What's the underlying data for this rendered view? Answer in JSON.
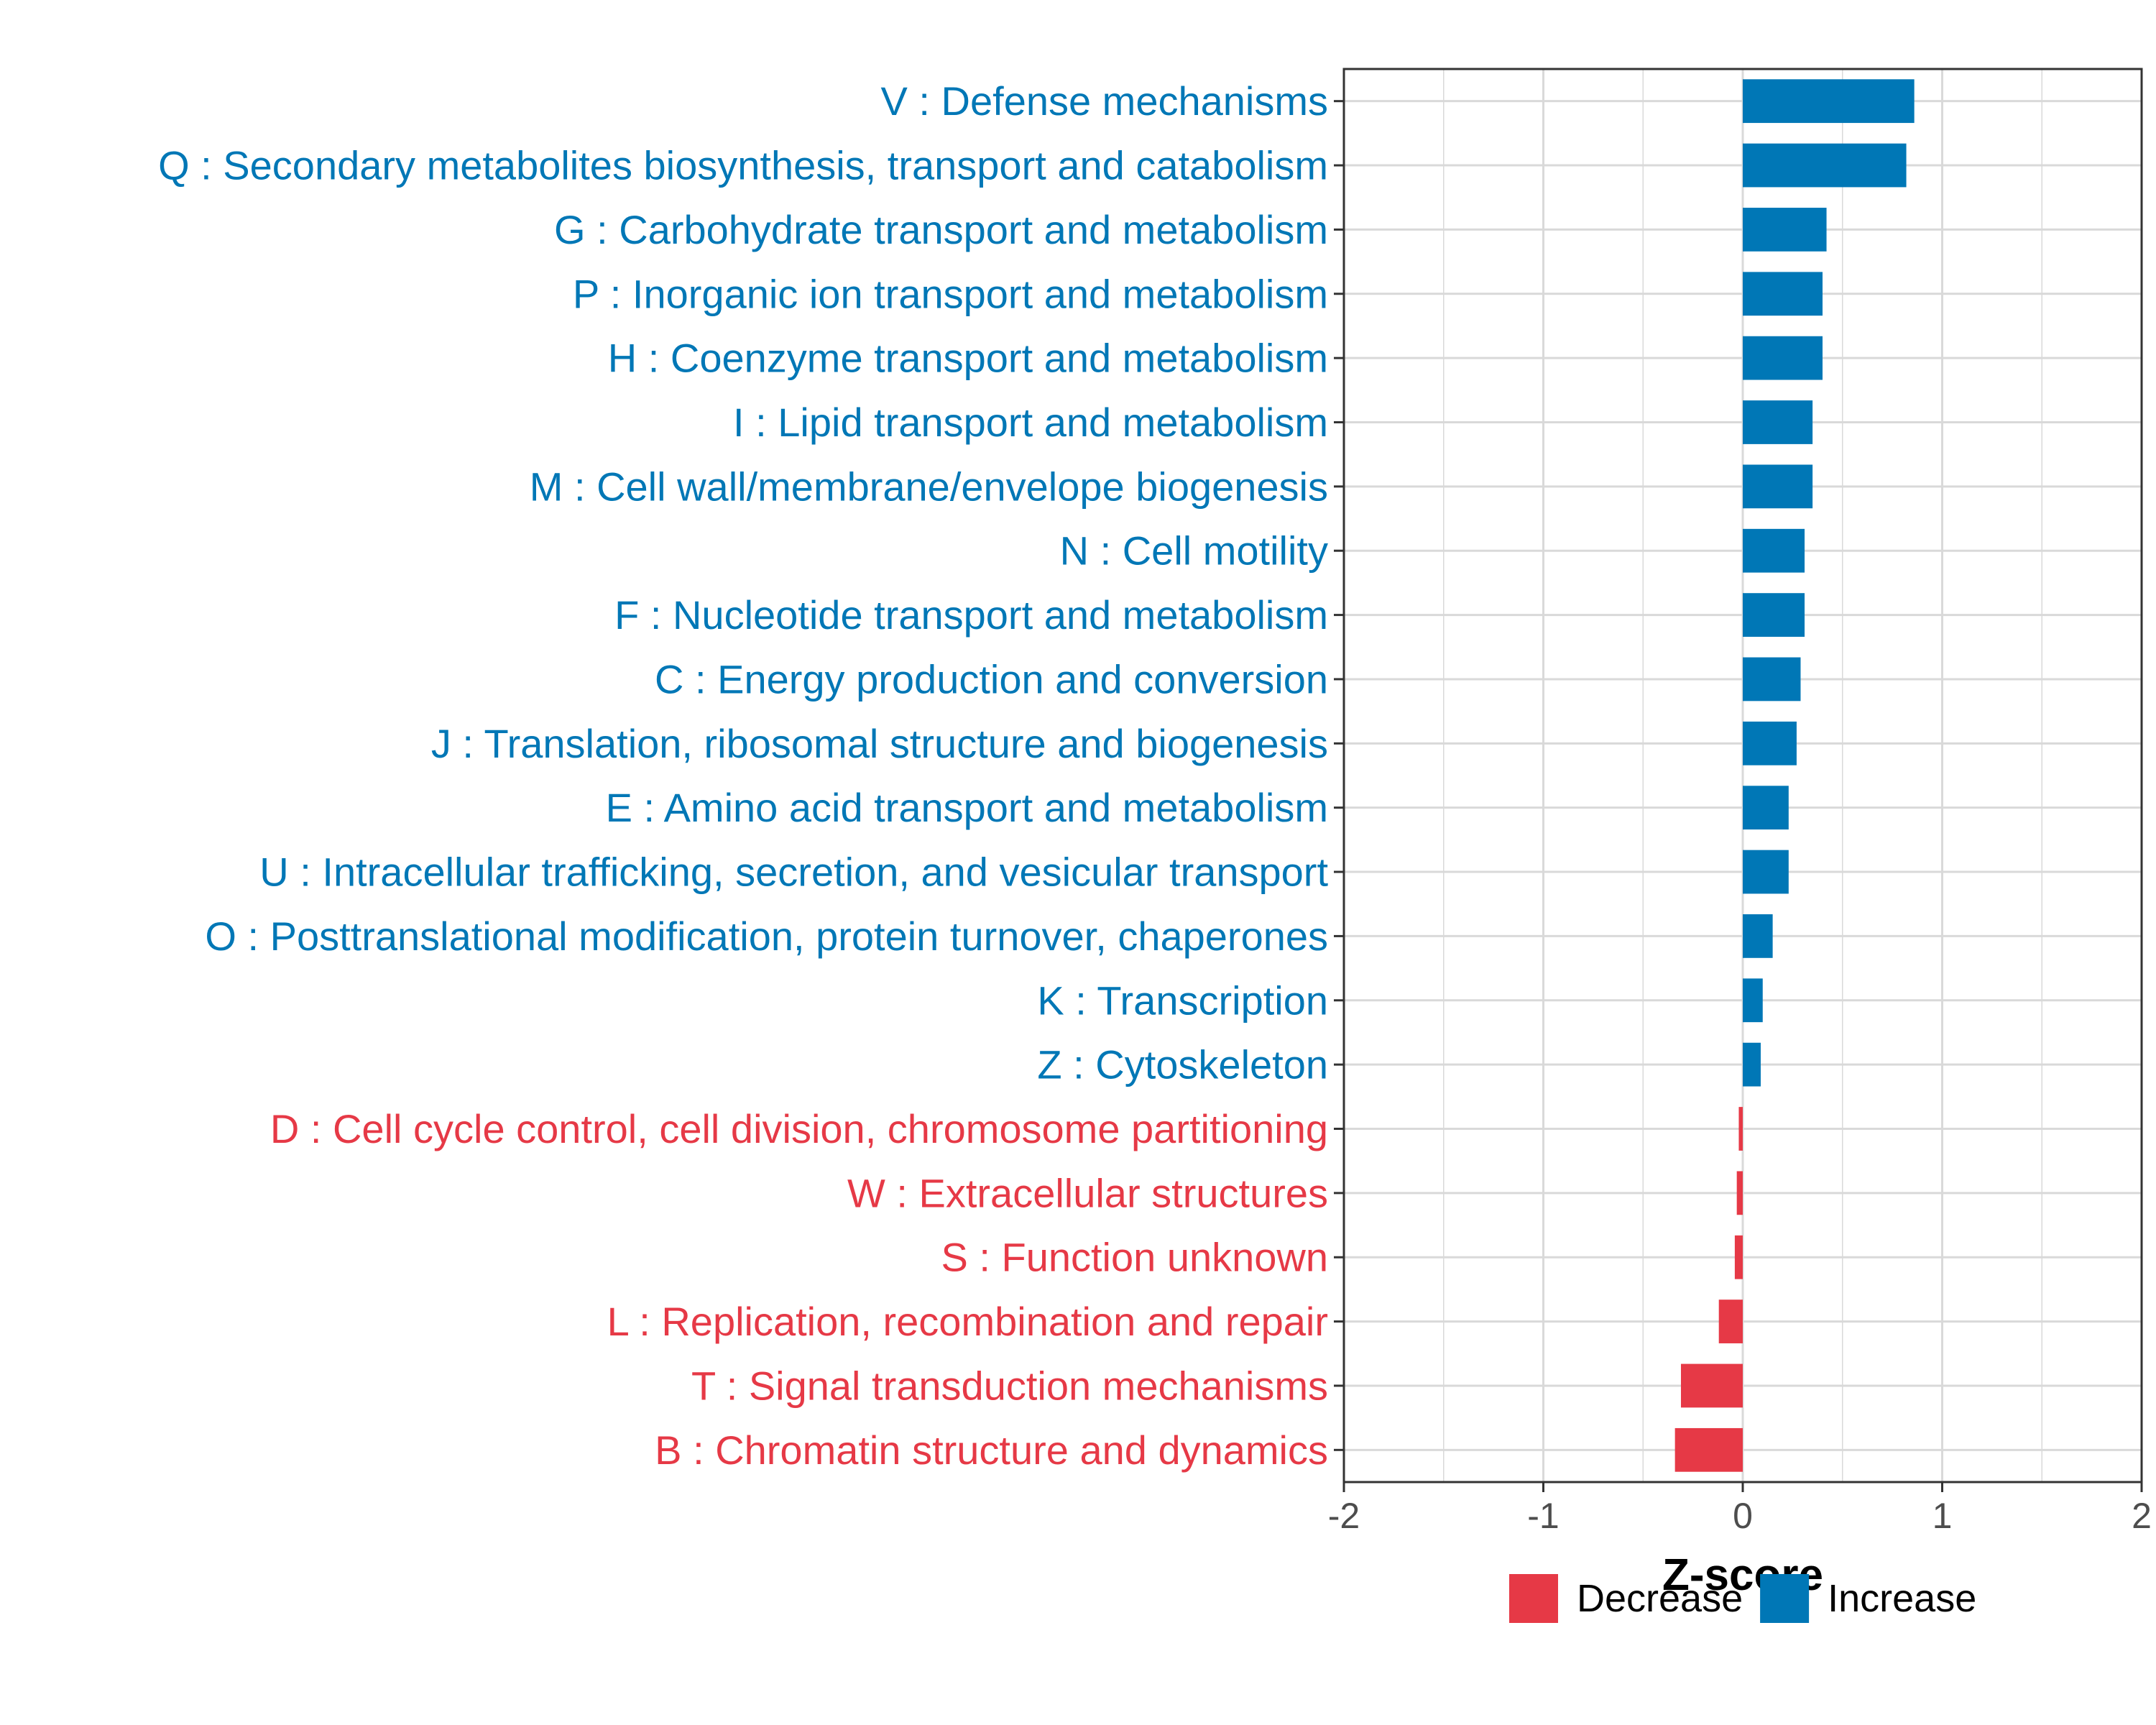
{
  "chart_data": {
    "type": "bar",
    "orientation": "horizontal",
    "title": "",
    "xlabel": "Z-score",
    "ylabel": "",
    "xlim": [
      -2,
      2
    ],
    "xticks": [
      -2,
      -1,
      0,
      1,
      2
    ],
    "grid": true,
    "legend_position": "bottom",
    "categories": [
      "V : Defense mechanisms",
      "Q : Secondary metabolites biosynthesis, transport and catabolism",
      "G : Carbohydrate transport and metabolism",
      "P : Inorganic ion transport and metabolism",
      "H : Coenzyme transport and metabolism",
      "I : Lipid transport and metabolism",
      "M : Cell wall/membrane/envelope biogenesis",
      "N : Cell motility",
      "F : Nucleotide transport and metabolism",
      "C : Energy production and conversion",
      "J : Translation, ribosomal structure and biogenesis",
      "E : Amino acid transport and metabolism",
      "U : Intracellular trafficking, secretion, and vesicular transport",
      "O : Posttranslational modification, protein turnover, chaperones",
      "K : Transcription",
      "Z : Cytoskeleton",
      "D : Cell cycle control, cell division, chromosome partitioning",
      "W : Extracellular structures",
      "S : Function unknown",
      "L : Replication, recombination and repair",
      "T : Signal transduction mechanisms",
      "B : Chromatin structure and dynamics"
    ],
    "values": [
      0.86,
      0.82,
      0.42,
      0.4,
      0.4,
      0.35,
      0.35,
      0.31,
      0.31,
      0.29,
      0.27,
      0.23,
      0.23,
      0.15,
      0.1,
      0.09,
      -0.02,
      -0.03,
      -0.04,
      -0.12,
      -0.31,
      -0.34
    ],
    "groups": [
      "Increase",
      "Increase",
      "Increase",
      "Increase",
      "Increase",
      "Increase",
      "Increase",
      "Increase",
      "Increase",
      "Increase",
      "Increase",
      "Increase",
      "Increase",
      "Increase",
      "Increase",
      "Increase",
      "Decrease",
      "Decrease",
      "Decrease",
      "Decrease",
      "Decrease",
      "Decrease"
    ],
    "legend": [
      {
        "label": "Decrease",
        "color": "#e63946"
      },
      {
        "label": "Increase",
        "color": "#0077b6"
      }
    ],
    "colors": {
      "Increase": "#0077b6",
      "Decrease": "#e63946",
      "grid": "#d9d9d9",
      "panel_border": "#333333"
    }
  }
}
